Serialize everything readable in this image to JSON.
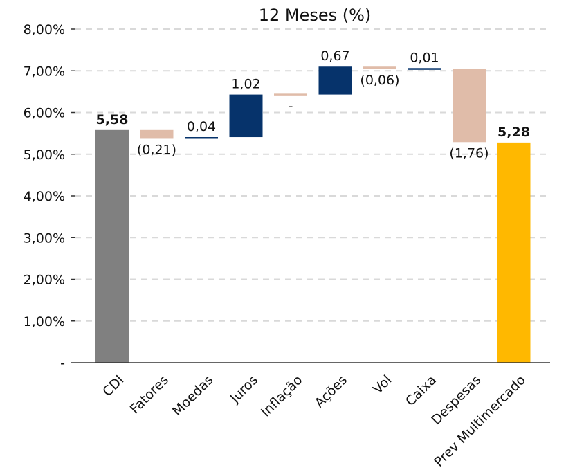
{
  "chart_data": {
    "type": "bar",
    "subtype": "waterfall",
    "title": "12 Meses (%)",
    "categories": [
      "CDI",
      "Fatores",
      "Moedas",
      "Juros",
      "Inflação",
      "Ações",
      "Vol",
      "Caixa",
      "Despesas",
      "Prev Multimercado"
    ],
    "values": [
      5.58,
      -0.21,
      0.04,
      1.02,
      0,
      0.67,
      -0.06,
      0.01,
      -1.76,
      5.28
    ],
    "kinds": [
      "total",
      "delta",
      "delta",
      "delta",
      "delta",
      "delta",
      "delta",
      "delta",
      "delta",
      "total"
    ],
    "value_labels": [
      "5,58",
      "(0,21)",
      "0,04",
      "1,02",
      "-",
      "0,67",
      "(0,06)",
      "0,01",
      "(1,76)",
      "5,28"
    ],
    "ylim": [
      0,
      8
    ],
    "yticks": [
      0,
      1,
      2,
      3,
      4,
      5,
      6,
      7,
      8
    ],
    "ytick_labels": [
      "-",
      "1,00%",
      "2,00%",
      "3,00%",
      "4,00%",
      "5,00%",
      "6,00%",
      "7,00%",
      "8,00%"
    ],
    "grid": true,
    "legend": "none",
    "colors": {
      "start_total": "#808080",
      "end_total": "#FFB800",
      "positive": "#06336B",
      "negative": "#E0BCA9",
      "zero": "#E0BCA9"
    }
  }
}
